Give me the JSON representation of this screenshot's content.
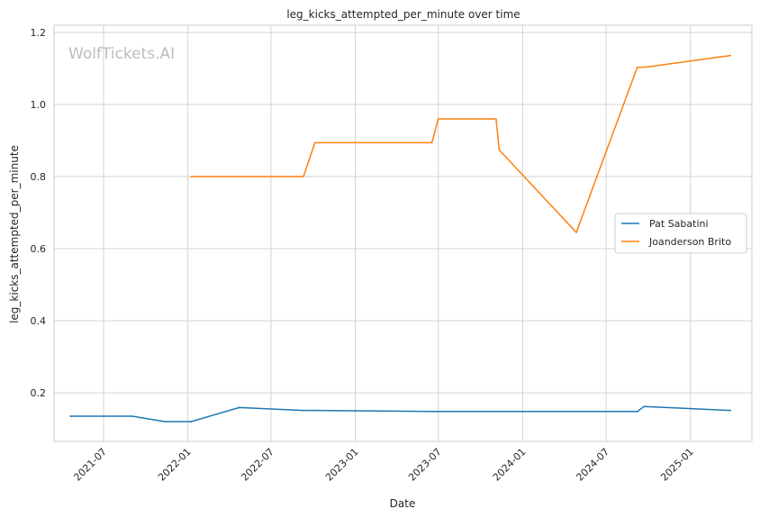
{
  "chart_data": {
    "type": "line",
    "title": "leg_kicks_attempted_per_minute over time",
    "xlabel": "Date",
    "ylabel": "leg_kicks_attempted_per_minute",
    "watermark": "WolfTickets.AI",
    "xlim": [
      "2021-03-15",
      "2025-05-15"
    ],
    "ylim": [
      0.065,
      1.22
    ],
    "x_ticks": [
      "2021-07",
      "2022-01",
      "2022-07",
      "2023-01",
      "2023-07",
      "2024-01",
      "2024-07",
      "2025-01"
    ],
    "y_ticks": [
      0.2,
      0.4,
      0.6,
      0.8,
      1.0,
      1.2
    ],
    "y_tick_labels": [
      "0.2",
      "0.4",
      "0.6",
      "0.8",
      "1.0",
      "1.2"
    ],
    "grid": true,
    "legend_position": "center-right",
    "series": [
      {
        "name": "Pat Sabatini",
        "color": "#1f77b4",
        "points": [
          {
            "x": "2021-04-20",
            "y": 0.135
          },
          {
            "x": "2021-09-01",
            "y": 0.135
          },
          {
            "x": "2021-11-12",
            "y": 0.12
          },
          {
            "x": "2022-01-08",
            "y": 0.12
          },
          {
            "x": "2022-04-23",
            "y": 0.159
          },
          {
            "x": "2022-09-10",
            "y": 0.151
          },
          {
            "x": "2022-10-10",
            "y": 0.151
          },
          {
            "x": "2023-06-20",
            "y": 0.148
          },
          {
            "x": "2024-09-07",
            "y": 0.148
          },
          {
            "x": "2024-09-22",
            "y": 0.162
          },
          {
            "x": "2025-03-29",
            "y": 0.151
          }
        ]
      },
      {
        "name": "Joanderson Brito",
        "color": "#ff7f0e",
        "points": [
          {
            "x": "2022-01-08",
            "y": 0.8
          },
          {
            "x": "2022-09-10",
            "y": 0.8
          },
          {
            "x": "2022-10-05",
            "y": 0.894
          },
          {
            "x": "2023-06-17",
            "y": 0.894
          },
          {
            "x": "2023-07-01",
            "y": 0.96
          },
          {
            "x": "2023-11-04",
            "y": 0.96
          },
          {
            "x": "2023-11-11",
            "y": 0.874
          },
          {
            "x": "2024-04-27",
            "y": 0.645
          },
          {
            "x": "2024-09-07",
            "y": 1.103
          },
          {
            "x": "2024-09-28",
            "y": 1.104
          },
          {
            "x": "2025-03-29",
            "y": 1.136
          }
        ]
      }
    ]
  }
}
